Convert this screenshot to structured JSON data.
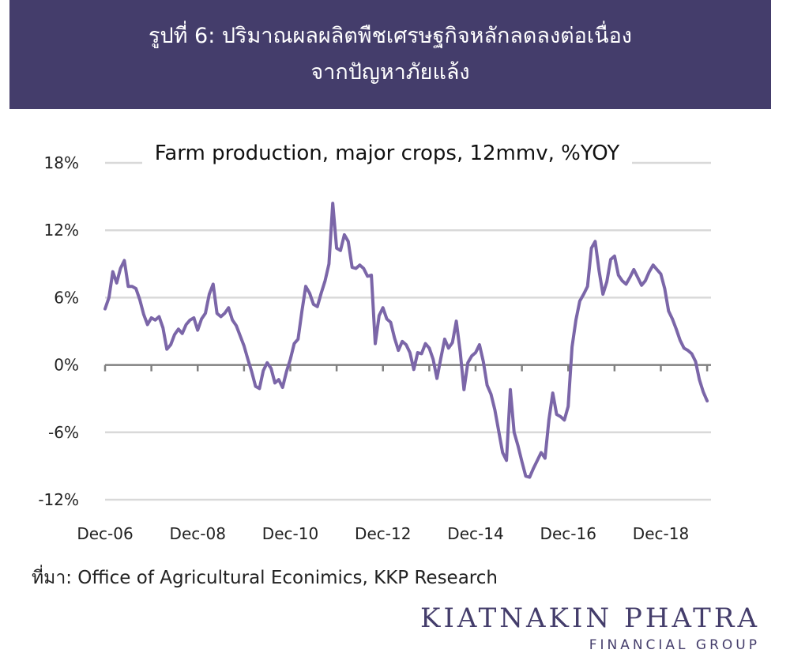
{
  "header": {
    "title_line1": "รูปที่ 6: ปริมาณผลผลิตพืชเศรษฐกิจหลักลดลงต่อเนื่อง",
    "title_line2": "จากปัญหาภัยแล้ง"
  },
  "chart_data": {
    "type": "line",
    "title": "Farm production, major crops, 12mmv, %YOY",
    "ylim": [
      -12,
      18
    ],
    "yticks": [
      18,
      12,
      6,
      0,
      -6,
      -12
    ],
    "ytick_labels": [
      "18%",
      "12%",
      "6%",
      "0%",
      "-6%",
      "-12%"
    ],
    "xlim": [
      0,
      157
    ],
    "xticks": [
      0,
      24,
      48,
      72,
      96,
      120,
      144
    ],
    "xtick_labels": [
      "Dec-06",
      "Dec-08",
      "Dec-10",
      "Dec-12",
      "Dec-14",
      "Dec-16",
      "Dec-18"
    ],
    "grid": true,
    "line_color": "#7b66a8",
    "series": [
      {
        "values": [
          [
            0,
            5
          ],
          [
            1,
            6
          ],
          [
            2,
            8.3
          ],
          [
            3,
            7.3
          ],
          [
            4,
            8.6
          ],
          [
            5,
            9.3
          ],
          [
            6,
            7
          ],
          [
            7,
            7
          ],
          [
            8,
            6.8
          ],
          [
            9,
            5.8
          ],
          [
            10,
            4.5
          ],
          [
            11,
            3.6
          ],
          [
            12,
            4.2
          ],
          [
            13,
            4.0
          ],
          [
            14,
            4.3
          ],
          [
            15,
            3.3
          ],
          [
            16,
            1.4
          ],
          [
            17,
            1.8
          ],
          [
            18,
            2.7
          ],
          [
            19,
            3.2
          ],
          [
            20,
            2.8
          ],
          [
            21,
            3.6
          ],
          [
            22,
            4
          ],
          [
            23,
            4.2
          ],
          [
            24,
            3.1
          ],
          [
            25,
            4.1
          ],
          [
            26,
            4.6
          ],
          [
            27,
            6.3
          ],
          [
            28,
            7.2
          ],
          [
            29,
            4.6
          ],
          [
            30,
            4.3
          ],
          [
            31,
            4.6
          ],
          [
            32,
            5.1
          ],
          [
            33,
            4.0
          ],
          [
            34,
            3.5
          ],
          [
            35,
            2.6
          ],
          [
            36,
            1.7
          ],
          [
            37,
            0.5
          ],
          [
            38,
            -0.6
          ],
          [
            39,
            -1.9
          ],
          [
            40,
            -2.1
          ],
          [
            41,
            -0.5
          ],
          [
            42,
            0.2
          ],
          [
            43,
            -0.3
          ],
          [
            44,
            -1.6
          ],
          [
            45,
            -1.3
          ],
          [
            46,
            -2.0
          ],
          [
            47,
            -0.6
          ],
          [
            48,
            0.5
          ],
          [
            49,
            1.9
          ],
          [
            50,
            2.3
          ],
          [
            51,
            4.8
          ],
          [
            52,
            7.0
          ],
          [
            53,
            6.4
          ],
          [
            54,
            5.4
          ],
          [
            55,
            5.2
          ],
          [
            56,
            6.4
          ],
          [
            57,
            7.5
          ],
          [
            58,
            9.0
          ],
          [
            59,
            14.4
          ],
          [
            60,
            10.4
          ],
          [
            61,
            10.2
          ],
          [
            62,
            11.6
          ],
          [
            63,
            11
          ],
          [
            64,
            8.7
          ],
          [
            65,
            8.6
          ],
          [
            66,
            8.9
          ],
          [
            67,
            8.6
          ],
          [
            68,
            7.9
          ],
          [
            69,
            8.0
          ],
          [
            70,
            1.9
          ],
          [
            71,
            4.4
          ],
          [
            72,
            5.1
          ],
          [
            73,
            4.1
          ],
          [
            74,
            3.8
          ],
          [
            75,
            2.4
          ],
          [
            76,
            1.3
          ],
          [
            77,
            2.1
          ],
          [
            78,
            1.8
          ],
          [
            79,
            1.1
          ],
          [
            80,
            -0.4
          ],
          [
            81,
            1.1
          ],
          [
            82,
            1.0
          ],
          [
            83,
            1.9
          ],
          [
            84,
            1.5
          ],
          [
            85,
            0.5
          ],
          [
            86,
            -1.2
          ],
          [
            87,
            0.6
          ],
          [
            88,
            2.3
          ],
          [
            89,
            1.5
          ],
          [
            90,
            2.0
          ],
          [
            91,
            3.9
          ],
          [
            92,
            1.2
          ],
          [
            93,
            -2.2
          ],
          [
            94,
            0.2
          ],
          [
            95,
            0.8
          ],
          [
            96,
            1.1
          ],
          [
            97,
            1.8
          ],
          [
            98,
            0.3
          ],
          [
            99,
            -1.8
          ],
          [
            100,
            -2.6
          ],
          [
            101,
            -4.0
          ],
          [
            102,
            -5.9
          ],
          [
            103,
            -7.8
          ],
          [
            104,
            -8.5
          ],
          [
            105,
            -2.2
          ],
          [
            106,
            -6.0
          ],
          [
            107,
            -7.2
          ],
          [
            108,
            -8.6
          ],
          [
            109,
            -9.9
          ],
          [
            110,
            -10.0
          ],
          [
            111,
            -9.2
          ],
          [
            112,
            -8.5
          ],
          [
            113,
            -7.8
          ],
          [
            114,
            -8.3
          ],
          [
            115,
            -4.9
          ],
          [
            116,
            -2.5
          ],
          [
            117,
            -4.4
          ],
          [
            118,
            -4.6
          ],
          [
            119,
            -4.9
          ],
          [
            120,
            -3.7
          ],
          [
            121,
            1.6
          ],
          [
            122,
            4
          ],
          [
            123,
            5.7
          ],
          [
            124,
            6.3
          ],
          [
            125,
            7.0
          ],
          [
            126,
            10.4
          ],
          [
            127,
            11.0
          ],
          [
            128,
            8.4
          ],
          [
            129,
            6.3
          ],
          [
            130,
            7.4
          ],
          [
            131,
            9.4
          ],
          [
            132,
            9.7
          ],
          [
            133,
            8.0
          ],
          [
            134,
            7.5
          ],
          [
            135,
            7.2
          ],
          [
            136,
            7.8
          ],
          [
            137,
            8.5
          ],
          [
            138,
            7.8
          ],
          [
            139,
            7.1
          ],
          [
            140,
            7.5
          ],
          [
            141,
            8.3
          ],
          [
            142,
            8.9
          ],
          [
            143,
            8.5
          ],
          [
            144,
            8.1
          ],
          [
            145,
            6.8
          ],
          [
            146,
            4.8
          ],
          [
            147,
            4.1
          ],
          [
            148,
            3.2
          ],
          [
            149,
            2.2
          ],
          [
            150,
            1.5
          ],
          [
            151,
            1.3
          ],
          [
            152,
            1.0
          ],
          [
            153,
            0.3
          ],
          [
            154,
            -1.3
          ],
          [
            155,
            -2.4
          ],
          [
            156,
            -3.2
          ]
        ]
      }
    ]
  },
  "source": "ที่มา: Office of Agricultural Econimics, KKP Research",
  "logo": {
    "main": "KIATNAKIN PHATRA",
    "sub": "FINANCIAL GROUP",
    "color": "#443d6b"
  }
}
